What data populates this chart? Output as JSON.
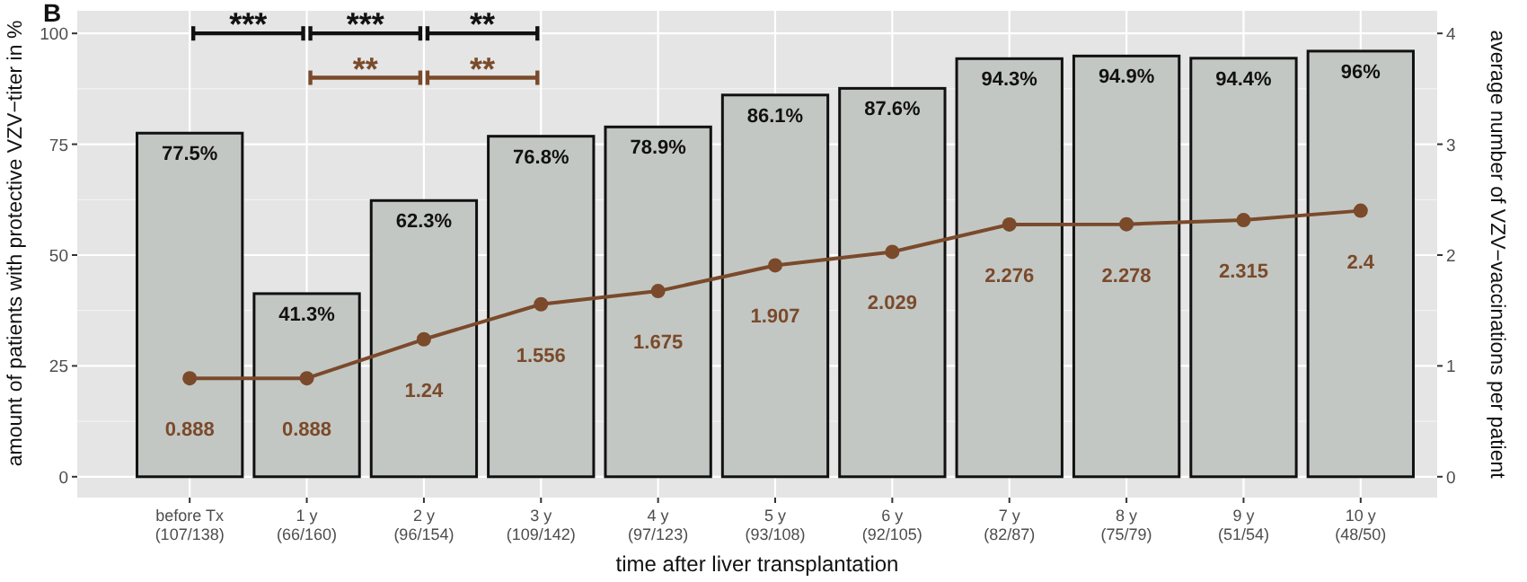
{
  "chart_data": {
    "type": "bar",
    "title": "B",
    "categories": [
      "before Tx\n(107/138)",
      "1 y\n(66/160)",
      "2 y\n(96/154)",
      "3 y\n(109/142)",
      "4 y\n(97/123)",
      "5 y\n(93/108)",
      "6 y\n(92/105)",
      "7 y\n(82/87)",
      "8 y\n(75/79)",
      "9 y\n(51/54)",
      "10 y\n(48/50)"
    ],
    "series": [
      {
        "color": "#c3c7c3",
        "values": [
          77.5,
          41.3,
          62.3,
          76.8,
          78.9,
          86.1,
          87.6,
          94.3,
          94.9,
          94.4,
          96
        ],
        "value_labels": [
          "77.5%",
          "41.3%",
          "62.3%",
          "76.8%",
          "78.9%",
          "86.1%",
          "87.6%",
          "94.3%",
          "94.9%",
          "94.4%",
          "96%"
        ]
      },
      {
        "type": "line",
        "axis": "y2",
        "color": "#7a4a2b",
        "marker": "circle",
        "values": [
          0.888,
          0.888,
          1.24,
          1.556,
          1.675,
          1.907,
          2.029,
          2.276,
          2.278,
          2.315,
          2.4
        ],
        "value_labels": [
          "0.888",
          "0.888",
          "1.24",
          "1.556",
          "1.675",
          "1.907",
          "2.029",
          "2.276",
          "2.278",
          "2.315",
          "2.4"
        ]
      }
    ],
    "xlabel": "time after liver transplantation",
    "ylabel": "amount of patients with protective VZV−titer in %",
    "y2label": "average number of VZV−vaccinations per patient",
    "ylim": [
      -4.7,
      105.1
    ],
    "yticks": [
      0,
      25,
      50,
      75,
      100
    ],
    "y2lim": [
      -0.188,
      4.204
    ],
    "y2ticks": [
      0,
      1,
      2,
      3,
      4
    ],
    "grid": true,
    "annotations": [
      "***",
      "***",
      "**",
      "**",
      "**"
    ]
  }
}
